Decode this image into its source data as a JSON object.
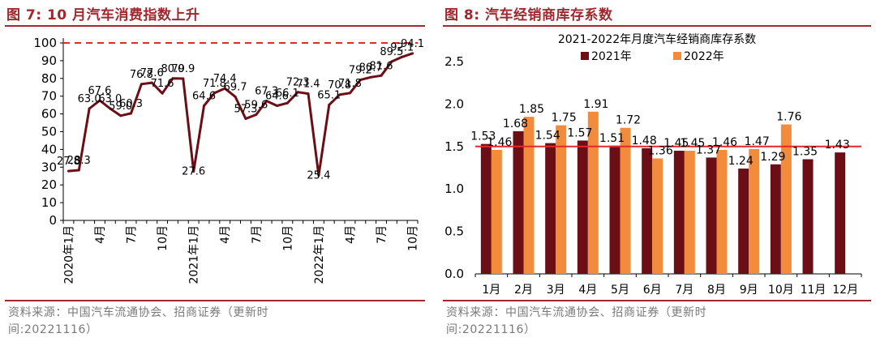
{
  "left": {
    "fig_title": "图 7:  10 月汽车消费指数上升",
    "source": "资料来源：中国汽车流通协会、招商证券（更新时间:20221116）",
    "chart_data": {
      "type": "line",
      "title": "",
      "xlabel": "",
      "ylabel": "",
      "ylim": [
        0,
        100
      ],
      "yticks": [
        "0",
        "10",
        "20",
        "30",
        "40",
        "50",
        "60",
        "70",
        "80",
        "90",
        "100"
      ],
      "x_tick_labels": [
        {
          "i": 0,
          "label": "2020年1月"
        },
        {
          "i": 3,
          "label": "4月"
        },
        {
          "i": 6,
          "label": "7月"
        },
        {
          "i": 9,
          "label": "10月"
        },
        {
          "i": 12,
          "label": "2021年1月"
        },
        {
          "i": 15,
          "label": "4月"
        },
        {
          "i": 18,
          "label": "7月"
        },
        {
          "i": 21,
          "label": "10月"
        },
        {
          "i": 24,
          "label": "2022年1月"
        },
        {
          "i": 27,
          "label": "4月"
        },
        {
          "i": 30,
          "label": "7月"
        },
        {
          "i": 33,
          "label": "10月"
        }
      ],
      "reference_line": 100,
      "values": [
        27.8,
        28.3,
        63.0,
        67.6,
        63.0,
        59.0,
        60.3,
        76.8,
        77.6,
        71.6,
        80.0,
        79.9,
        27.6,
        64.6,
        71.8,
        74.4,
        69.7,
        57.3,
        59.6,
        67.3,
        64.6,
        66.1,
        72.3,
        71.4,
        25.4,
        65.1,
        70.8,
        71.8,
        79.2,
        80.7,
        81.6,
        89.5,
        92.1,
        94.1
      ],
      "data_labels": [
        "27.8",
        "28.3",
        "63.0",
        "67.6",
        "63.0",
        "59.0",
        "60.3",
        "76.8",
        "77.6",
        "71.6",
        "80.0",
        "79.9",
        "27.6",
        "64.6",
        "71.8",
        "74.4",
        "69.7",
        "57.3",
        "59.6",
        "67.3",
        "64.6",
        "66.1",
        "72.3",
        "71.4",
        "25.4",
        "65.1",
        "70.8",
        "71.8",
        "79.2",
        "80.7",
        "81.6",
        "89.5",
        "92.1",
        "94.1"
      ],
      "colors": {
        "line": "#6b0e16",
        "reference": "#e8272c"
      }
    }
  },
  "right": {
    "fig_title": "图 8:  汽车经销商库存系数",
    "source": "资料来源：中国汽车流通协会、招商证券（更新时间:20221116）",
    "chart_data": {
      "type": "bar",
      "title": "2021-2022年月度汽车经销商库存系数",
      "xlabel": "",
      "ylabel": "",
      "ylim": [
        0,
        2.5
      ],
      "yticks": [
        "0.0",
        "0.5",
        "1.0",
        "1.5",
        "2.0",
        "2.5"
      ],
      "categories": [
        "1月",
        "2月",
        "3月",
        "4月",
        "5月",
        "6月",
        "7月",
        "8月",
        "9月",
        "10月",
        "11月",
        "12月"
      ],
      "reference_line": 1.5,
      "legend_position": "top-center",
      "series": [
        {
          "name": "2021年",
          "color": "#6b0e16",
          "values": [
            1.53,
            1.68,
            1.54,
            1.57,
            1.51,
            1.48,
            1.45,
            1.37,
            1.24,
            1.29,
            1.35,
            1.43
          ],
          "labels": [
            "1.53",
            "1.68",
            "1.54",
            "1.57",
            "1.51",
            "1.48",
            "1.45",
            "1.37",
            "1.24",
            "1.29",
            "1.35",
            "1.43"
          ]
        },
        {
          "name": "2022年",
          "color": "#f28c3c",
          "values": [
            1.46,
            1.85,
            1.75,
            1.91,
            1.72,
            1.36,
            1.45,
            1.46,
            1.47,
            1.76,
            null,
            null
          ],
          "labels": [
            "1.46",
            "1.85",
            "1.75",
            "1.91",
            "1.72",
            "1.36",
            "1.45",
            "1.46",
            "1.47",
            "1.76",
            "",
            ""
          ]
        }
      ],
      "colors": {
        "reference": "#e8272c"
      }
    }
  }
}
